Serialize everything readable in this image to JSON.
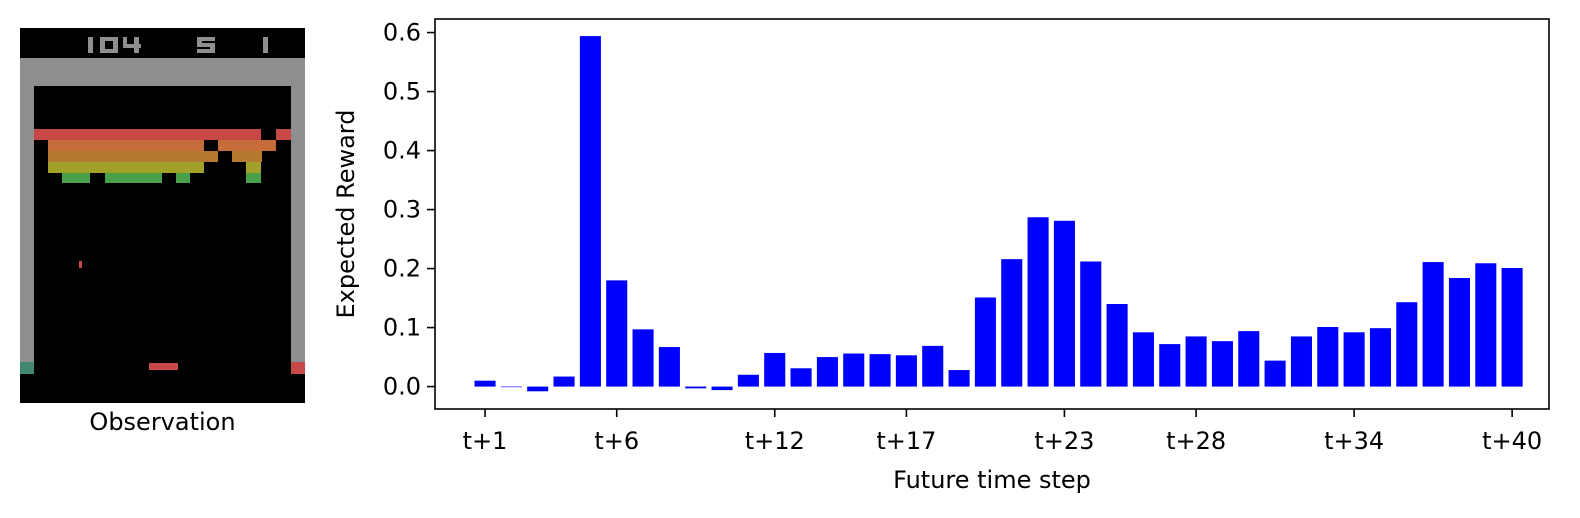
{
  "observation": {
    "caption": "Observation",
    "score_digits": "104 5 1",
    "colors": {
      "background": "#000000",
      "wall": "#8e8e8e",
      "ball": "#c84848",
      "paddle": "#c84848",
      "rows": [
        "#c84848",
        "#c66c3a",
        "#b47a30",
        "#a2a22a",
        "#48a048"
      ],
      "left_marker": "#42886e",
      "right_marker": "#c84848"
    }
  },
  "chart_data": {
    "type": "bar",
    "xlabel": "Future time step",
    "ylabel": "Expected Reward",
    "x": [
      1,
      2,
      3,
      4,
      5,
      6,
      7,
      8,
      9,
      10,
      11,
      12,
      13,
      14,
      15,
      16,
      17,
      18,
      19,
      20,
      21,
      22,
      23,
      24,
      25,
      26,
      27,
      28,
      29,
      30,
      31,
      32,
      33,
      34,
      35,
      36,
      37,
      38,
      39,
      40
    ],
    "values": [
      0.01,
      0.0,
      -0.008,
      0.017,
      0.594,
      0.18,
      0.097,
      0.067,
      -0.003,
      -0.006,
      0.02,
      0.057,
      0.031,
      0.05,
      0.056,
      0.055,
      0.053,
      0.069,
      0.028,
      0.151,
      0.216,
      0.287,
      0.281,
      0.212,
      0.14,
      0.092,
      0.072,
      0.085,
      0.077,
      0.094,
      0.044,
      0.085,
      0.101,
      0.092,
      0.099,
      0.143,
      0.211,
      0.184,
      0.209,
      0.201
    ],
    "xticks": [
      1,
      6,
      12,
      17,
      23,
      28,
      34,
      40
    ],
    "xtick_labels": [
      "t+1",
      "t+6",
      "t+12",
      "t+17",
      "t+23",
      "t+28",
      "t+34",
      "t+40"
    ],
    "yticks": [
      0.0,
      0.1,
      0.2,
      0.3,
      0.4,
      0.5,
      0.6
    ],
    "ytick_labels": [
      "0.0",
      "0.1",
      "0.2",
      "0.3",
      "0.4",
      "0.5",
      "0.6"
    ],
    "ylim": [
      -0.038,
      0.623
    ],
    "xlim": [
      -0.9,
      41.4
    ],
    "bar_color": "#0000ff",
    "grid": false,
    "legend": "none"
  }
}
